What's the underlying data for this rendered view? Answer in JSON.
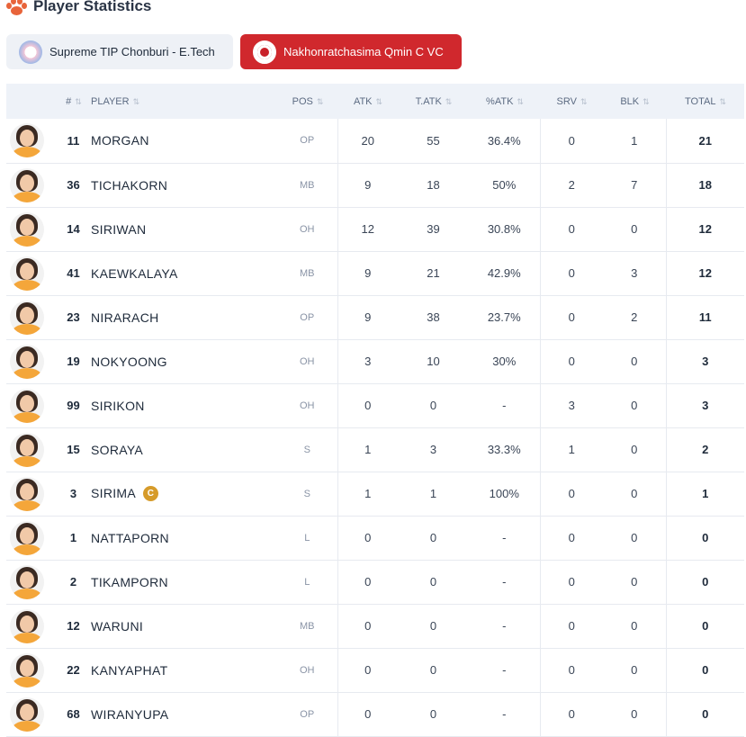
{
  "header": {
    "title": "Player Statistics",
    "icon": "paw-icon"
  },
  "tabs": [
    {
      "label": "Supreme TIP Chonburi - E.Tech",
      "active": false
    },
    {
      "label": "Nakhonratchasima Qmin C VC",
      "active": true
    }
  ],
  "colors": {
    "accent": "#d0282d",
    "header_bg": "#eef2f8",
    "captain": "#d69b2a"
  },
  "table": {
    "columns": [
      "#",
      "PLAYER",
      "POS",
      "ATK",
      "T.ATK",
      "%ATK",
      "SRV",
      "BLK",
      "TOTAL"
    ],
    "rows": [
      {
        "num": "11",
        "name": "MORGAN",
        "pos": "OP",
        "atk": "20",
        "tatk": "55",
        "patk": "36.4%",
        "srv": "0",
        "blk": "1",
        "total": "21"
      },
      {
        "num": "36",
        "name": "TICHAKORN",
        "pos": "MB",
        "atk": "9",
        "tatk": "18",
        "patk": "50%",
        "srv": "2",
        "blk": "7",
        "total": "18"
      },
      {
        "num": "14",
        "name": "SIRIWAN",
        "pos": "OH",
        "atk": "12",
        "tatk": "39",
        "patk": "30.8%",
        "srv": "0",
        "blk": "0",
        "total": "12"
      },
      {
        "num": "41",
        "name": "KAEWKALAYA",
        "pos": "MB",
        "atk": "9",
        "tatk": "21",
        "patk": "42.9%",
        "srv": "0",
        "blk": "3",
        "total": "12"
      },
      {
        "num": "23",
        "name": "NIRARACH",
        "pos": "OP",
        "atk": "9",
        "tatk": "38",
        "patk": "23.7%",
        "srv": "0",
        "blk": "2",
        "total": "11"
      },
      {
        "num": "19",
        "name": "NOKYOONG",
        "pos": "OH",
        "atk": "3",
        "tatk": "10",
        "patk": "30%",
        "srv": "0",
        "blk": "0",
        "total": "3"
      },
      {
        "num": "99",
        "name": "SIRIKON",
        "pos": "OH",
        "atk": "0",
        "tatk": "0",
        "patk": "-",
        "srv": "3",
        "blk": "0",
        "total": "3"
      },
      {
        "num": "15",
        "name": "SORAYA",
        "pos": "S",
        "atk": "1",
        "tatk": "3",
        "patk": "33.3%",
        "srv": "1",
        "blk": "0",
        "total": "2"
      },
      {
        "num": "3",
        "name": "SIRIMA",
        "pos": "S",
        "atk": "1",
        "tatk": "1",
        "patk": "100%",
        "srv": "0",
        "blk": "0",
        "total": "1",
        "captain": "C"
      },
      {
        "num": "1",
        "name": "NATTAPORN",
        "pos": "L",
        "atk": "0",
        "tatk": "0",
        "patk": "-",
        "srv": "0",
        "blk": "0",
        "total": "0"
      },
      {
        "num": "2",
        "name": "TIKAMPORN",
        "pos": "L",
        "atk": "0",
        "tatk": "0",
        "patk": "-",
        "srv": "0",
        "blk": "0",
        "total": "0"
      },
      {
        "num": "12",
        "name": "WARUNI",
        "pos": "MB",
        "atk": "0",
        "tatk": "0",
        "patk": "-",
        "srv": "0",
        "blk": "0",
        "total": "0"
      },
      {
        "num": "22",
        "name": "KANYAPHAT",
        "pos": "OH",
        "atk": "0",
        "tatk": "0",
        "patk": "-",
        "srv": "0",
        "blk": "0",
        "total": "0"
      },
      {
        "num": "68",
        "name": "WIRANYUPA",
        "pos": "OP",
        "atk": "0",
        "tatk": "0",
        "patk": "-",
        "srv": "0",
        "blk": "0",
        "total": "0"
      }
    ]
  }
}
